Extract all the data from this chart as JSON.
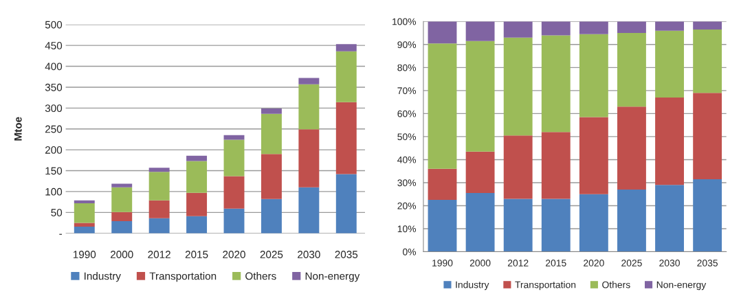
{
  "chart_data": [
    {
      "type": "bar",
      "stacked": true,
      "ylabel": "Mtoe",
      "categories": [
        "1990",
        "2000",
        "2012",
        "2015",
        "2020",
        "2025",
        "2030",
        "2035"
      ],
      "series": [
        {
          "name": "Industry",
          "color": "#4f81bd",
          "values": [
            16,
            29,
            36,
            41,
            59,
            82,
            110,
            142
          ]
        },
        {
          "name": "Transportation",
          "color": "#c0504d",
          "values": [
            9,
            22,
            43,
            56,
            78,
            108,
            139,
            172
          ]
        },
        {
          "name": "Others",
          "color": "#9bbb59",
          "values": [
            47,
            59,
            68,
            76,
            87,
            96,
            108,
            122
          ]
        },
        {
          "name": "Non-energy",
          "color": "#8064a2",
          "values": [
            7,
            9,
            10,
            13,
            11,
            13,
            15,
            17
          ]
        }
      ],
      "ylim": [
        0,
        500
      ],
      "yticks": [
        {
          "value": 0,
          "label": "-"
        },
        50,
        100,
        150,
        200,
        250,
        300,
        350,
        400,
        450,
        500
      ],
      "grid": "y",
      "legend": "bottom"
    },
    {
      "type": "bar",
      "stacked": true,
      "categories": [
        "1990",
        "2000",
        "2012",
        "2015",
        "2020",
        "2025",
        "2030",
        "2035"
      ],
      "series": [
        {
          "name": "Industry",
          "color": "#4f81bd",
          "values": [
            22.5,
            25.5,
            23,
            23,
            25,
            27,
            29,
            31.5
          ]
        },
        {
          "name": "Transportation",
          "color": "#c0504d",
          "values": [
            13.5,
            18,
            27.5,
            29,
            33.5,
            36,
            38,
            37.5
          ]
        },
        {
          "name": "Others",
          "color": "#9bbb59",
          "values": [
            54.5,
            48,
            42.5,
            42,
            36,
            32,
            29,
            27.5
          ]
        },
        {
          "name": "Non-energy",
          "color": "#8064a2",
          "values": [
            9.5,
            8.5,
            7,
            6,
            5.5,
            5,
            4,
            3.5
          ]
        }
      ],
      "ylim": [
        0,
        100
      ],
      "yticks": [
        {
          "value": 0,
          "label": "0%"
        },
        {
          "value": 10,
          "label": "10%"
        },
        {
          "value": 20,
          "label": "20%"
        },
        {
          "value": 30,
          "label": "30%"
        },
        {
          "value": 40,
          "label": "40%"
        },
        {
          "value": 50,
          "label": "50%"
        },
        {
          "value": 60,
          "label": "60%"
        },
        {
          "value": 70,
          "label": "70%"
        },
        {
          "value": 80,
          "label": "80%"
        },
        {
          "value": 90,
          "label": "90%"
        },
        {
          "value": 100,
          "label": "100%"
        }
      ],
      "grid": "y",
      "legend": "bottom"
    }
  ]
}
